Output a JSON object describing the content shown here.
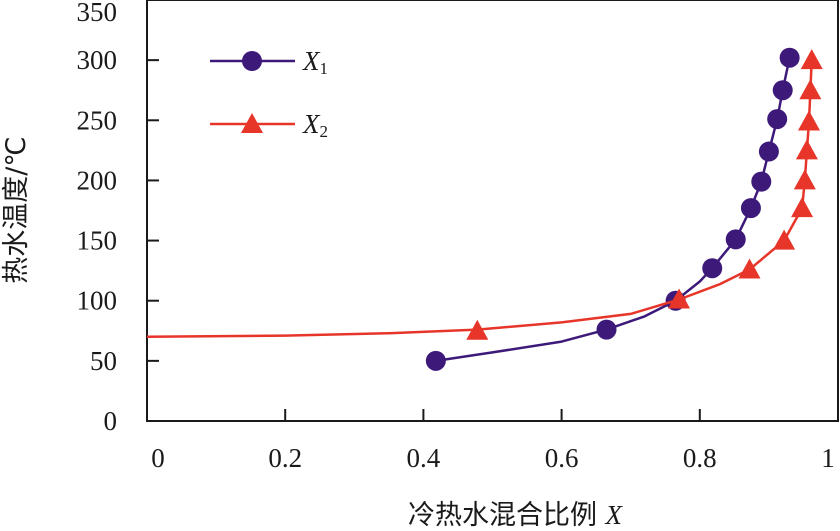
{
  "chart_data": {
    "type": "line",
    "xlabel": "冷热水混合比例",
    "xlabel_var": "X",
    "ylabel": "热水温度/℃",
    "xlim": [
      0,
      1
    ],
    "ylim": [
      0,
      350
    ],
    "x_ticks": [
      "0",
      "0.2",
      "0.4",
      "0.6",
      "0.8",
      "1"
    ],
    "y_ticks": [
      "0",
      "50",
      "100",
      "150",
      "200",
      "250",
      "300",
      "350"
    ],
    "legend_position": "top-left",
    "grid": false,
    "series": [
      {
        "name": "X1",
        "name_main": "X",
        "name_sub": "1",
        "color": "#3d1a7a",
        "marker": "circle",
        "points": [
          [
            0.418,
            50
          ],
          [
            0.665,
            76
          ],
          [
            0.765,
            100
          ],
          [
            0.818,
            127
          ],
          [
            0.852,
            151
          ],
          [
            0.874,
            177
          ],
          [
            0.889,
            199
          ],
          [
            0.9,
            224
          ],
          [
            0.912,
            251
          ],
          [
            0.92,
            275
          ],
          [
            0.93,
            302
          ]
        ],
        "curve": [
          [
            0.418,
            50
          ],
          [
            0.5,
            57
          ],
          [
            0.6,
            66
          ],
          [
            0.665,
            76
          ],
          [
            0.72,
            87
          ],
          [
            0.765,
            100
          ],
          [
            0.8,
            116
          ],
          [
            0.818,
            127
          ],
          [
            0.852,
            151
          ],
          [
            0.874,
            177
          ],
          [
            0.889,
            199
          ],
          [
            0.9,
            224
          ],
          [
            0.912,
            251
          ],
          [
            0.92,
            275
          ],
          [
            0.93,
            302
          ]
        ]
      },
      {
        "name": "X2",
        "name_main": "X",
        "name_sub": "2",
        "color": "#e8352a",
        "marker": "triangle",
        "points": [
          [
            0.478,
            75
          ],
          [
            0.77,
            101
          ],
          [
            0.872,
            126
          ],
          [
            0.922,
            150
          ],
          [
            0.948,
            177
          ],
          [
            0.952,
            200
          ],
          [
            0.955,
            225
          ],
          [
            0.958,
            249
          ],
          [
            0.96,
            275
          ],
          [
            0.962,
            300
          ]
        ],
        "curve": [
          [
            0.0,
            70
          ],
          [
            0.2,
            71
          ],
          [
            0.35,
            73
          ],
          [
            0.478,
            76
          ],
          [
            0.6,
            82
          ],
          [
            0.7,
            89
          ],
          [
            0.77,
            101
          ],
          [
            0.83,
            114
          ],
          [
            0.872,
            126
          ],
          [
            0.922,
            150
          ],
          [
            0.948,
            177
          ],
          [
            0.952,
            200
          ],
          [
            0.955,
            225
          ],
          [
            0.958,
            249
          ],
          [
            0.96,
            275
          ],
          [
            0.962,
            300
          ]
        ]
      }
    ]
  }
}
